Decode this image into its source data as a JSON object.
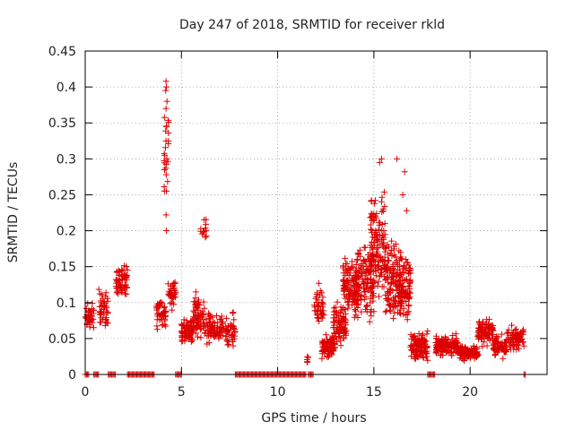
{
  "chart_data": {
    "type": "scatter",
    "title": "Day 247 of 2018, SRMTID for receiver rkld",
    "xlabel": "GPS time / hours",
    "ylabel": "SRMTID / TECUs",
    "xlim": [
      0,
      24
    ],
    "ylim": [
      0,
      0.45
    ],
    "x_ticks": [
      0,
      5,
      10,
      15,
      20
    ],
    "y_ticks": [
      0,
      0.05,
      0.1,
      0.15,
      0.2,
      0.25,
      0.3,
      0.35,
      0.4,
      0.45
    ],
    "x_tick_labels": [
      "0",
      "5",
      "10",
      "15",
      "20"
    ],
    "y_tick_labels": [
      "0",
      "0.05",
      "0.1",
      "0.15",
      "0.2",
      "0.25",
      "0.3",
      "0.35",
      "0.4",
      "0.45"
    ],
    "grid": true,
    "marker": "+",
    "series_color": "#dd0000",
    "series": [
      {
        "name": "SRMTID",
        "clusters": [
          {
            "x": [
              0.0,
              0.45
            ],
            "y_center": 0.08,
            "y_spread": 0.025,
            "n": 40
          },
          {
            "x": [
              0.7,
              1.2
            ],
            "y_center": 0.095,
            "y_spread": 0.04,
            "n": 45
          },
          {
            "x": [
              1.6,
              2.2
            ],
            "y_center": 0.13,
            "y_spread": 0.03,
            "n": 60
          },
          {
            "x": [
              3.7,
              4.2
            ],
            "y_center": 0.085,
            "y_spread": 0.03,
            "n": 45
          },
          {
            "x": [
              4.1,
              4.35
            ],
            "y_center": 0.3,
            "y_spread": 0.1,
            "n": 20
          },
          {
            "x": [
              4.3,
              4.7
            ],
            "y_center": 0.11,
            "y_spread": 0.025,
            "n": 35
          },
          {
            "x": [
              5.0,
              5.6
            ],
            "y_center": 0.06,
            "y_spread": 0.025,
            "n": 70
          },
          {
            "x": [
              5.6,
              6.2
            ],
            "y_center": 0.08,
            "y_spread": 0.04,
            "n": 70
          },
          {
            "x": [
              6.0,
              6.3
            ],
            "y_center": 0.2,
            "y_spread": 0.025,
            "n": 12
          },
          {
            "x": [
              6.2,
              7.2
            ],
            "y_center": 0.065,
            "y_spread": 0.03,
            "n": 80
          },
          {
            "x": [
              7.3,
              7.8
            ],
            "y_center": 0.06,
            "y_spread": 0.03,
            "n": 40
          },
          {
            "x": [
              11.5,
              11.6
            ],
            "y_center": 0.02,
            "y_spread": 0.01,
            "n": 5
          },
          {
            "x": [
              11.9,
              12.4
            ],
            "y_center": 0.09,
            "y_spread": 0.04,
            "n": 40
          },
          {
            "x": [
              12.3,
              13.0
            ],
            "y_center": 0.04,
            "y_spread": 0.02,
            "n": 80
          },
          {
            "x": [
              12.9,
              13.6
            ],
            "y_center": 0.07,
            "y_spread": 0.035,
            "n": 80
          },
          {
            "x": [
              13.4,
              14.2
            ],
            "y_center": 0.12,
            "y_spread": 0.06,
            "n": 110
          },
          {
            "x": [
              14.0,
              15.0
            ],
            "y_center": 0.13,
            "y_spread": 0.07,
            "n": 120
          },
          {
            "x": [
              14.8,
              15.6
            ],
            "y_center": 0.17,
            "y_spread": 0.1,
            "n": 130
          },
          {
            "x": [
              15.6,
              16.4
            ],
            "y_center": 0.13,
            "y_spread": 0.08,
            "n": 120
          },
          {
            "x": [
              16.3,
              16.9
            ],
            "y_center": 0.12,
            "y_spread": 0.06,
            "n": 90
          },
          {
            "x": [
              16.9,
              17.8
            ],
            "y_center": 0.04,
            "y_spread": 0.025,
            "n": 110
          },
          {
            "x": [
              18.2,
              19.4
            ],
            "y_center": 0.04,
            "y_spread": 0.02,
            "n": 120
          },
          {
            "x": [
              19.4,
              20.4
            ],
            "y_center": 0.03,
            "y_spread": 0.015,
            "n": 100
          },
          {
            "x": [
              20.4,
              21.2
            ],
            "y_center": 0.06,
            "y_spread": 0.025,
            "n": 90
          },
          {
            "x": [
              21.2,
              21.9
            ],
            "y_center": 0.04,
            "y_spread": 0.02,
            "n": 70
          },
          {
            "x": [
              21.9,
              22.8
            ],
            "y_center": 0.05,
            "y_spread": 0.02,
            "n": 80
          }
        ],
        "zero_ranges": [
          [
            0.0,
            0.2
          ],
          [
            0.45,
            0.7
          ],
          [
            1.2,
            1.6
          ],
          [
            2.2,
            3.6
          ],
          [
            4.7,
            5.0
          ],
          [
            7.8,
            11.5
          ],
          [
            11.6,
            11.9
          ],
          [
            17.8,
            18.2
          ],
          [
            22.8,
            22.9
          ]
        ]
      }
    ]
  }
}
